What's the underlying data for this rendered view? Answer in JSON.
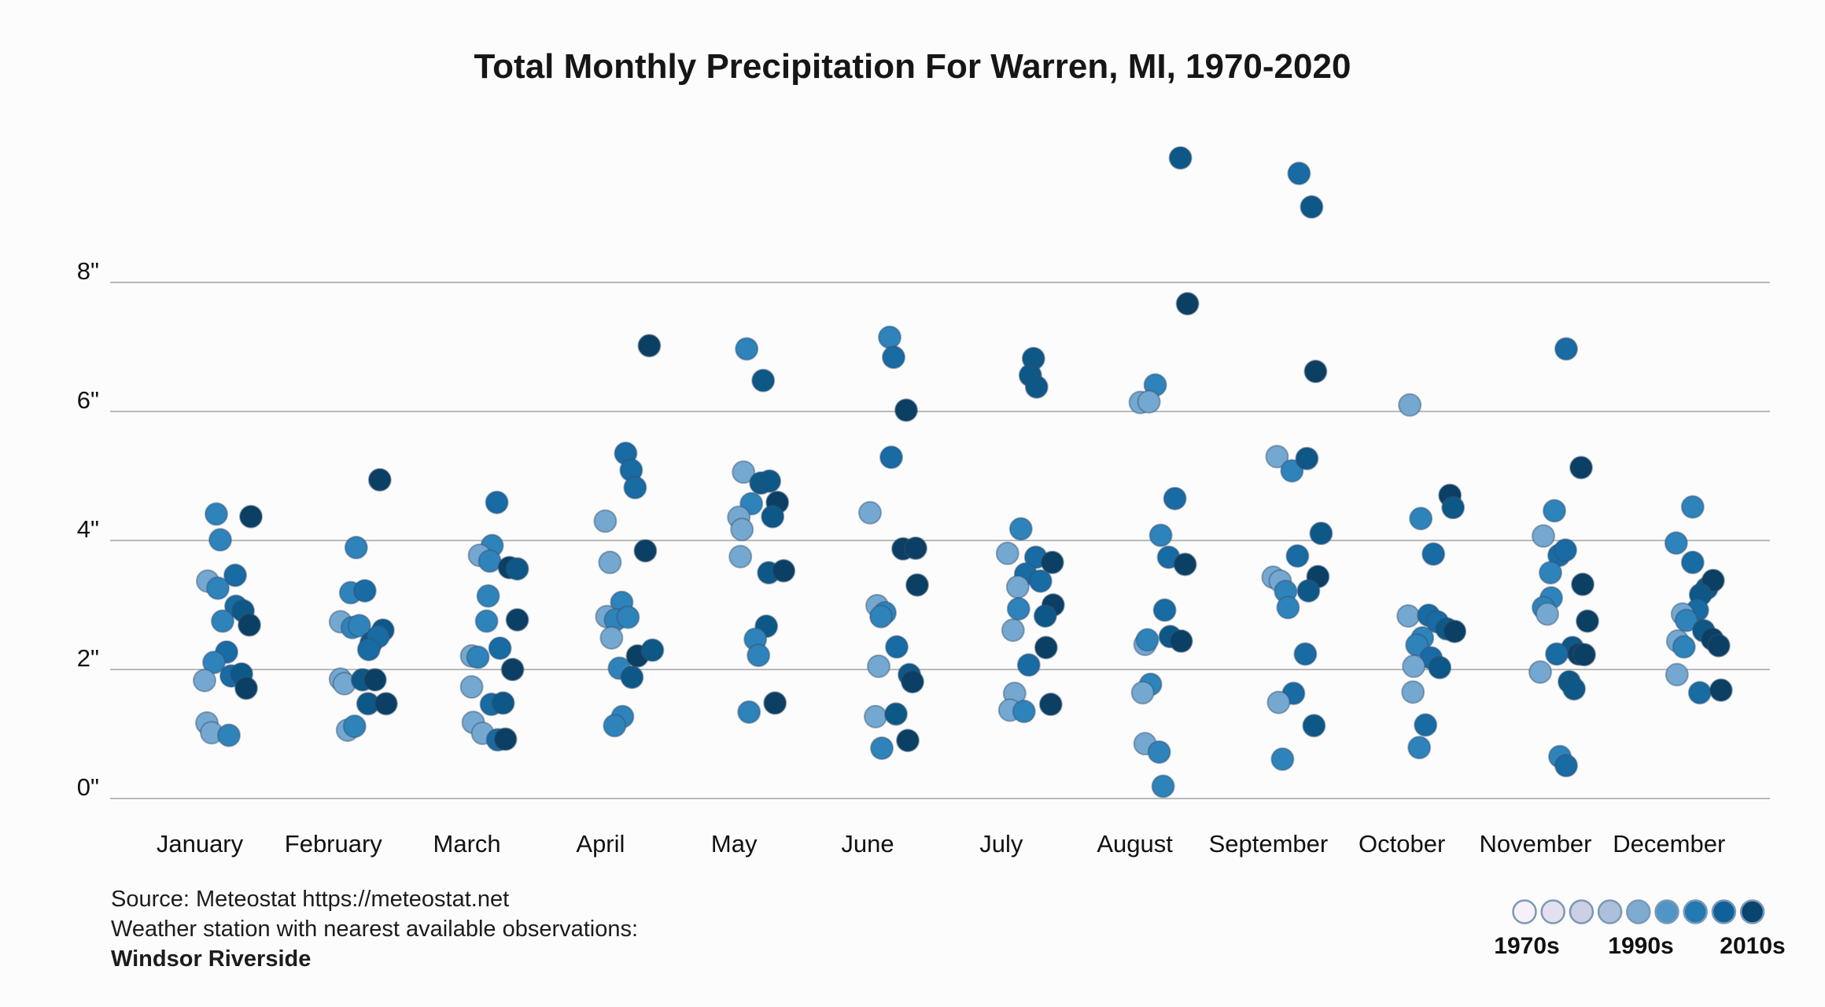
{
  "title": "Total Monthly Precipitation For Warren, MI, 1970-2020",
  "source": {
    "line1": "Source: Meteostat https://meteostat.net",
    "line2": "Weather station with nearest available observations:",
    "line3": "Windsor Riverside"
  },
  "legend": {
    "labels": [
      "1970s",
      "1990s",
      "2010s"
    ],
    "swatches": [
      "#f6f1f8",
      "#e4e0ef",
      "#cdcfe4",
      "#adc0db",
      "#7fabd1",
      "#4f95c5",
      "#2379b2",
      "#10619b",
      "#0a4570"
    ],
    "swatch_stroke": "#7b99b5"
  },
  "chart_data": {
    "type": "scatter",
    "title": "Total Monthly Precipitation For Warren, MI, 1970-2020",
    "x_categories": [
      "January",
      "February",
      "March",
      "April",
      "May",
      "June",
      "July",
      "August",
      "September",
      "October",
      "November",
      "December"
    ],
    "y_tick_values": [
      0,
      2,
      4,
      6,
      8
    ],
    "y_tick_labels": [
      "0\"",
      "2\"",
      "4\"",
      "6\"",
      "8\""
    ],
    "ylim": [
      0,
      10.2
    ],
    "grid": "horizontal",
    "unit": "inches",
    "legend_position": "bottom-right",
    "point_color_levels": [
      "#74a8d0",
      "#2f83bb",
      "#196ba4",
      "#0e5888",
      "#0b3f63"
    ],
    "point_format": [
      "precip_inches",
      "x_jitter_px",
      "color_level_0_light_to_4_dark"
    ],
    "points": {
      "January": [
        [
          4.41,
          21,
          1
        ],
        [
          4.37,
          65,
          4
        ],
        [
          4.01,
          26,
          1
        ],
        [
          3.37,
          10,
          0
        ],
        [
          3.46,
          45,
          2
        ],
        [
          3.26,
          23,
          1
        ],
        [
          2.98,
          46,
          2
        ],
        [
          2.91,
          55,
          3
        ],
        [
          2.75,
          29,
          1
        ],
        [
          2.69,
          63,
          4
        ],
        [
          2.27,
          34,
          2
        ],
        [
          2.11,
          18,
          1
        ],
        [
          1.9,
          40,
          2
        ],
        [
          1.93,
          53,
          3
        ],
        [
          1.83,
          6,
          0
        ],
        [
          1.71,
          59,
          4
        ],
        [
          1.17,
          9,
          0
        ],
        [
          1.02,
          15,
          0
        ],
        [
          0.98,
          37,
          1
        ]
      ],
      "February": [
        [
          4.94,
          59,
          4
        ],
        [
          3.89,
          29,
          1
        ],
        [
          3.19,
          22,
          1
        ],
        [
          3.22,
          40,
          2
        ],
        [
          2.74,
          9,
          0
        ],
        [
          2.65,
          24,
          1
        ],
        [
          2.68,
          33,
          1
        ],
        [
          2.61,
          63,
          3
        ],
        [
          2.41,
          48,
          3
        ],
        [
          2.51,
          57,
          2
        ],
        [
          2.31,
          45,
          2
        ],
        [
          1.85,
          9,
          0
        ],
        [
          1.78,
          14,
          0
        ],
        [
          1.84,
          37,
          3
        ],
        [
          1.84,
          53,
          4
        ],
        [
          1.47,
          44,
          3
        ],
        [
          1.47,
          67,
          4
        ],
        [
          1.06,
          18,
          0
        ],
        [
          1.12,
          27,
          1
        ]
      ],
      "March": [
        [
          4.59,
          38,
          2
        ],
        [
          3.92,
          32,
          1
        ],
        [
          3.77,
          16,
          0
        ],
        [
          3.68,
          29,
          1
        ],
        [
          3.58,
          54,
          4
        ],
        [
          3.56,
          64,
          3
        ],
        [
          3.14,
          27,
          1
        ],
        [
          2.75,
          25,
          1
        ],
        [
          2.77,
          64,
          4
        ],
        [
          2.33,
          42,
          2
        ],
        [
          2.21,
          6,
          0
        ],
        [
          2.19,
          14,
          1
        ],
        [
          2.0,
          58,
          4
        ],
        [
          1.73,
          6,
          0
        ],
        [
          1.46,
          31,
          2
        ],
        [
          1.48,
          46,
          3
        ],
        [
          1.18,
          8,
          0
        ],
        [
          1.01,
          20,
          0
        ],
        [
          0.91,
          39,
          2
        ],
        [
          0.92,
          49,
          4
        ]
      ],
      "April": [
        [
          7.02,
          62,
          4
        ],
        [
          5.35,
          32,
          2
        ],
        [
          5.09,
          39,
          2
        ],
        [
          4.82,
          44,
          2
        ],
        [
          4.3,
          6,
          0
        ],
        [
          3.84,
          57,
          4
        ],
        [
          3.66,
          12,
          0
        ],
        [
          3.04,
          27,
          1
        ],
        [
          2.82,
          8,
          0
        ],
        [
          2.77,
          19,
          1
        ],
        [
          2.81,
          35,
          1
        ],
        [
          2.49,
          14,
          0
        ],
        [
          2.21,
          47,
          4
        ],
        [
          2.3,
          66,
          3
        ],
        [
          2.02,
          24,
          1
        ],
        [
          1.88,
          40,
          3
        ],
        [
          1.27,
          28,
          1
        ],
        [
          1.13,
          18,
          1
        ]
      ],
      "May": [
        [
          6.97,
          16,
          1
        ],
        [
          6.48,
          37,
          3
        ],
        [
          5.06,
          12,
          0
        ],
        [
          4.89,
          34,
          3
        ],
        [
          4.92,
          45,
          3
        ],
        [
          4.57,
          22,
          1
        ],
        [
          4.59,
          55,
          4
        ],
        [
          4.37,
          49,
          3
        ],
        [
          4.36,
          6,
          0
        ],
        [
          4.17,
          10,
          0
        ],
        [
          3.75,
          8,
          0
        ],
        [
          3.5,
          44,
          3
        ],
        [
          3.53,
          63,
          4
        ],
        [
          2.67,
          41,
          3
        ],
        [
          2.47,
          27,
          1
        ],
        [
          2.22,
          31,
          1
        ],
        [
          1.48,
          52,
          4
        ],
        [
          1.34,
          19,
          1
        ]
      ],
      "June": [
        [
          7.15,
          28,
          1
        ],
        [
          6.84,
          33,
          2
        ],
        [
          6.02,
          49,
          4
        ],
        [
          5.29,
          30,
          2
        ],
        [
          4.43,
          3,
          0
        ],
        [
          3.87,
          45,
          4
        ],
        [
          3.88,
          61,
          4
        ],
        [
          3.31,
          63,
          4
        ],
        [
          2.99,
          12,
          0
        ],
        [
          2.88,
          22,
          1
        ],
        [
          2.82,
          17,
          1
        ],
        [
          2.35,
          37,
          2
        ],
        [
          2.05,
          14,
          0
        ],
        [
          1.92,
          53,
          3
        ],
        [
          1.81,
          57,
          4
        ],
        [
          1.27,
          10,
          0
        ],
        [
          1.31,
          36,
          3
        ],
        [
          0.78,
          18,
          1
        ],
        [
          0.9,
          51,
          4
        ]
      ],
      "July": [
        [
          6.82,
          41,
          3
        ],
        [
          6.56,
          37,
          3
        ],
        [
          6.38,
          45,
          3
        ],
        [
          4.18,
          25,
          1
        ],
        [
          3.8,
          8,
          0
        ],
        [
          3.74,
          44,
          2
        ],
        [
          3.66,
          65,
          4
        ],
        [
          3.48,
          31,
          2
        ],
        [
          3.37,
          50,
          2
        ],
        [
          3.28,
          21,
          0
        ],
        [
          2.94,
          22,
          1
        ],
        [
          3.0,
          66,
          4
        ],
        [
          2.83,
          56,
          3
        ],
        [
          2.61,
          15,
          0
        ],
        [
          2.34,
          57,
          4
        ],
        [
          2.07,
          35,
          2
        ],
        [
          1.63,
          17,
          0
        ],
        [
          1.37,
          11,
          0
        ],
        [
          1.35,
          29,
          1
        ],
        [
          1.46,
          63,
          4
        ]
      ],
      "August": [
        [
          9.93,
          58,
          3
        ],
        [
          7.67,
          67,
          4
        ],
        [
          6.41,
          26,
          1
        ],
        [
          6.14,
          7,
          0
        ],
        [
          6.15,
          18,
          0
        ],
        [
          4.65,
          51,
          2
        ],
        [
          4.08,
          33,
          1
        ],
        [
          3.74,
          43,
          2
        ],
        [
          3.63,
          64,
          4
        ],
        [
          2.92,
          38,
          2
        ],
        [
          2.39,
          13,
          0
        ],
        [
          2.46,
          16,
          1
        ],
        [
          2.51,
          45,
          3
        ],
        [
          2.44,
          59,
          4
        ],
        [
          1.77,
          20,
          1
        ],
        [
          1.64,
          10,
          0
        ],
        [
          0.85,
          13,
          0
        ],
        [
          0.72,
          31,
          1
        ],
        [
          0.19,
          36,
          1
        ]
      ],
      "September": [
        [
          9.69,
          39,
          2
        ],
        [
          9.17,
          55,
          3
        ],
        [
          6.62,
          60,
          4
        ],
        [
          5.3,
          11,
          0
        ],
        [
          5.08,
          30,
          1
        ],
        [
          5.27,
          49,
          3
        ],
        [
          4.11,
          67,
          3
        ],
        [
          3.76,
          37,
          2
        ],
        [
          3.43,
          6,
          0
        ],
        [
          3.37,
          15,
          0
        ],
        [
          3.44,
          63,
          4
        ],
        [
          3.22,
          51,
          3
        ],
        [
          3.21,
          22,
          1
        ],
        [
          2.96,
          25,
          1
        ],
        [
          2.24,
          47,
          2
        ],
        [
          1.63,
          32,
          2
        ],
        [
          1.49,
          13,
          0
        ],
        [
          1.13,
          58,
          3
        ],
        [
          0.61,
          18,
          1
        ]
      ],
      "October": [
        [
          6.1,
          10,
          0
        ],
        [
          4.7,
          61,
          4
        ],
        [
          4.51,
          65,
          3
        ],
        [
          4.34,
          24,
          1
        ],
        [
          3.79,
          40,
          2
        ],
        [
          2.83,
          8,
          0
        ],
        [
          2.84,
          34,
          2
        ],
        [
          2.74,
          45,
          2
        ],
        [
          2.63,
          57,
          3
        ],
        [
          2.59,
          67,
          4
        ],
        [
          2.49,
          26,
          1
        ],
        [
          2.38,
          19,
          1
        ],
        [
          2.18,
          37,
          2
        ],
        [
          2.05,
          15,
          0
        ],
        [
          2.03,
          48,
          3
        ],
        [
          1.65,
          14,
          0
        ],
        [
          1.14,
          30,
          2
        ],
        [
          0.79,
          22,
          1
        ]
      ],
      "November": [
        [
          6.97,
          39,
          2
        ],
        [
          5.13,
          58,
          4
        ],
        [
          4.46,
          24,
          1
        ],
        [
          4.07,
          10,
          0
        ],
        [
          3.77,
          30,
          2
        ],
        [
          3.85,
          38,
          2
        ],
        [
          3.5,
          19,
          1
        ],
        [
          3.32,
          60,
          4
        ],
        [
          3.11,
          20,
          1
        ],
        [
          2.96,
          10,
          1
        ],
        [
          2.86,
          15,
          0
        ],
        [
          2.75,
          66,
          4
        ],
        [
          2.34,
          47,
          3
        ],
        [
          2.24,
          55,
          4
        ],
        [
          2.23,
          62,
          4
        ],
        [
          2.24,
          27,
          2
        ],
        [
          1.96,
          6,
          0
        ],
        [
          1.81,
          43,
          3
        ],
        [
          1.7,
          49,
          3
        ],
        [
          0.65,
          31,
          1
        ],
        [
          0.51,
          39,
          2
        ]
      ],
      "December": [
        [
          4.52,
          30,
          1
        ],
        [
          3.96,
          9,
          1
        ],
        [
          3.66,
          30,
          2
        ],
        [
          3.26,
          48,
          3
        ],
        [
          3.38,
          56,
          4
        ],
        [
          3.16,
          40,
          3
        ],
        [
          2.92,
          36,
          2
        ],
        [
          2.86,
          17,
          0
        ],
        [
          2.76,
          22,
          1
        ],
        [
          2.6,
          44,
          3
        ],
        [
          2.47,
          55,
          4
        ],
        [
          2.37,
          63,
          4
        ],
        [
          2.44,
          11,
          0
        ],
        [
          2.35,
          19,
          1
        ],
        [
          1.92,
          10,
          0
        ],
        [
          1.64,
          39,
          2
        ],
        [
          1.68,
          66,
          4
        ]
      ]
    }
  }
}
